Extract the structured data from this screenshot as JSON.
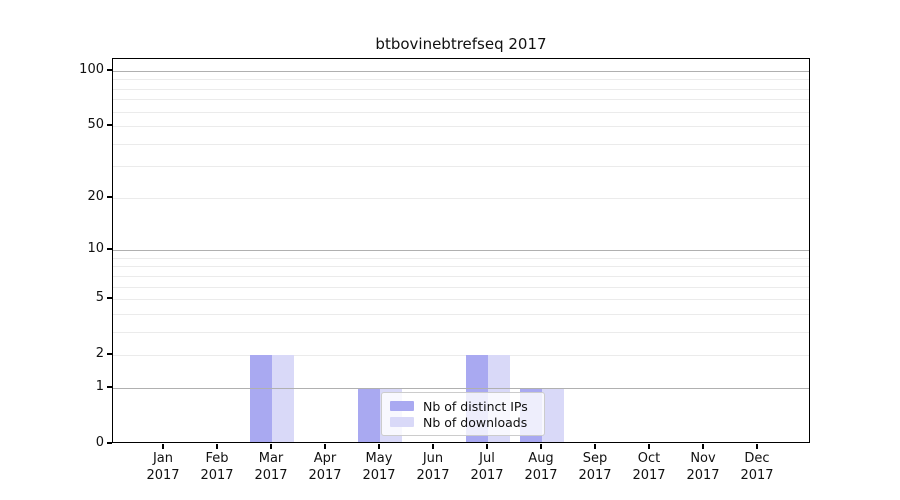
{
  "chart_data": {
    "type": "bar",
    "title": "btbovinebtrefseq 2017",
    "categories": [
      "Jan 2017",
      "Feb 2017",
      "Mar 2017",
      "Apr 2017",
      "May 2017",
      "Jun 2017",
      "Jul 2017",
      "Aug 2017",
      "Sep 2017",
      "Oct 2017",
      "Nov 2017",
      "Dec 2017"
    ],
    "series": [
      {
        "name": "Nb of distinct IPs",
        "color": "#a9a9f1",
        "values": [
          0,
          0,
          2,
          0,
          1,
          0,
          2,
          1,
          0,
          0,
          0,
          0
        ]
      },
      {
        "name": "Nb of downloads",
        "color": "#d9d9f8",
        "values": [
          0,
          0,
          2,
          0,
          1,
          0,
          2,
          1,
          0,
          0,
          0,
          0
        ]
      }
    ],
    "xlabel": "",
    "ylabel": "",
    "yscale": "log1p",
    "ylim": [
      0,
      115
    ],
    "y_tick_values": [
      0,
      1,
      2,
      5,
      10,
      20,
      50,
      100
    ],
    "y_major_gridlines": [
      1,
      10,
      100
    ],
    "y_minor_gridlines": [
      2,
      3,
      4,
      5,
      6,
      7,
      8,
      9,
      20,
      30,
      40,
      50,
      60,
      70,
      80,
      90
    ],
    "grid": true,
    "legend_location": "lower center",
    "colors": {
      "axis": "#000000",
      "text": "#111111",
      "major_grid": "#b0b0b0",
      "minor_grid": "#ebebeb",
      "legend_border": "#cccccc",
      "background": "#ffffff"
    }
  }
}
